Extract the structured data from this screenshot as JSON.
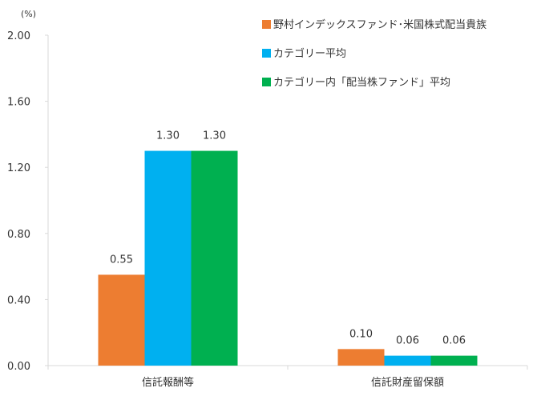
{
  "chart_data": {
    "type": "bar",
    "title": "",
    "unit_label": "(%)",
    "xlabel": "",
    "ylabel": "",
    "ylim": [
      0,
      2.0
    ],
    "yticks": [
      "0.00",
      "0.40",
      "0.80",
      "1.20",
      "1.60",
      "2.00"
    ],
    "ytick_values": [
      0,
      0.4,
      0.8,
      1.2,
      1.6,
      2.0
    ],
    "grid": false,
    "legend_position": "top-right",
    "categories": [
      "信託報酬等",
      "信託財産留保額"
    ],
    "series": [
      {
        "name": "野村インデックスファンド･米国株式配当貴族",
        "color": "#ED7D31",
        "values": [
          0.55,
          0.1
        ],
        "labels": [
          "0.55",
          "0.10"
        ]
      },
      {
        "name": "カテゴリー平均",
        "color": "#00B0F0",
        "values": [
          1.3,
          0.06
        ],
        "labels": [
          "1.30",
          "0.06"
        ]
      },
      {
        "name": "カテゴリー内「配当株ファンド」平均",
        "color": "#00B050",
        "values": [
          1.3,
          0.06
        ],
        "labels": [
          "1.30",
          "0.06"
        ]
      }
    ]
  }
}
